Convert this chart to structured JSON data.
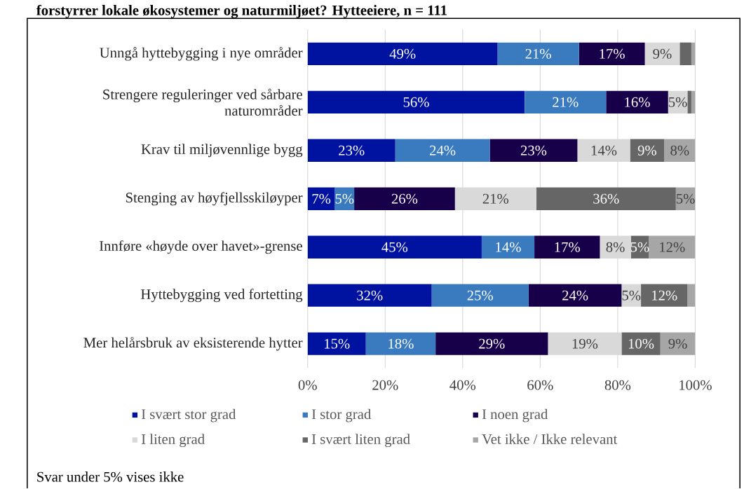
{
  "chart_data": {
    "type": "bar",
    "orientation": "horizontal",
    "stacked": true,
    "title": "forstyrrer lokale økosystemer og naturmiljøet? Hytteeiere, n = 111",
    "categories": [
      "Unngå hyttebygging i nye områder",
      "Strengere reguleringer ved sårbare naturområder",
      "Krav til miljøvennlige bygg",
      "Stenging av høyfjellsskiløyper",
      "Innføre «høyde over havet»-grense",
      "Hyttebygging ved fortetting",
      "Mer helårsbruk av eksisterende hytter"
    ],
    "series": [
      {
        "name": "I svært stor grad",
        "color": "#0012a0",
        "values": [
          49,
          56,
          22.6,
          7,
          44.9,
          32,
          15
        ],
        "value_labels": [
          "49%",
          "56%",
          "23%",
          "7%",
          "45%",
          "32%",
          "15%"
        ]
      },
      {
        "name": "I stor grad",
        "color": "#3a7bbf",
        "values": [
          21,
          21,
          24.4,
          5,
          13.6,
          25,
          18
        ],
        "value_labels": [
          "21%",
          "21%",
          "24%",
          "5%",
          "14%",
          "25%",
          "18%"
        ]
      },
      {
        "name": "I noen grad",
        "color": "#170049",
        "values": [
          17,
          16,
          22.6,
          26,
          16.9,
          24,
          29
        ],
        "value_labels": [
          "17%",
          "16%",
          "23%",
          "26%",
          "17%",
          "24%",
          "29%"
        ]
      },
      {
        "name": "I liten grad",
        "color": "#d9d9d9",
        "values": [
          9,
          5,
          13.6,
          21,
          8,
          5,
          19
        ],
        "value_labels": [
          "9%",
          "5%",
          "14%",
          "21%",
          "8%",
          "5%",
          "19%"
        ]
      },
      {
        "name": "I svært liten grad",
        "color": "#666666",
        "values": [
          3,
          1,
          8.8,
          36,
          4.6,
          12,
          10
        ],
        "value_labels": [
          null,
          null,
          "9%",
          "36%",
          "5%",
          "12%",
          "10%"
        ]
      },
      {
        "name": "Vet ikke / Ikke relevant",
        "color": "#a6a6a6",
        "values": [
          1,
          1,
          8,
          5,
          12,
          2,
          9
        ],
        "value_labels": [
          null,
          null,
          "8%",
          "5%",
          "12%",
          null,
          "9%"
        ]
      }
    ],
    "xlim": [
      0,
      100
    ],
    "xticks": [
      {
        "value": 0,
        "label": "0%"
      },
      {
        "value": 20,
        "label": "20%"
      },
      {
        "value": 40,
        "label": "40%"
      },
      {
        "value": 60,
        "label": "60%"
      },
      {
        "value": 80,
        "label": "80%"
      },
      {
        "value": 100,
        "label": "100%"
      }
    ],
    "grid": "x",
    "legend": "bottom",
    "annotations": [
      "Svar under 5% vises ikke"
    ]
  }
}
